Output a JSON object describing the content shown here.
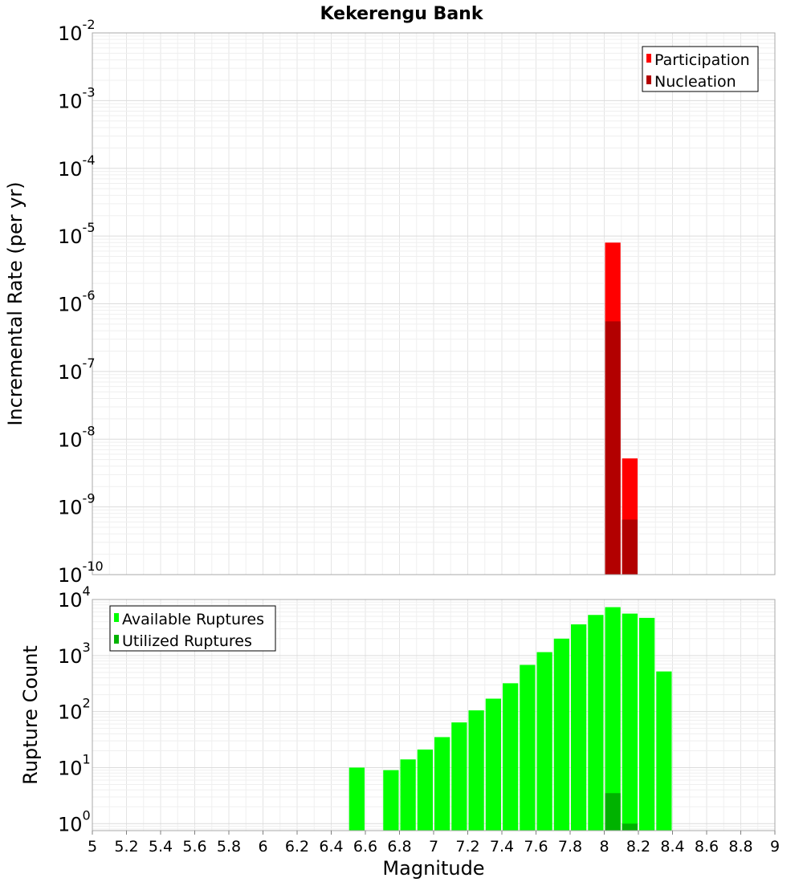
{
  "chart_data": [
    {
      "type": "bar",
      "title": "Kekerengu Bank",
      "ylabel": "Incremental Rate (per yr)",
      "xlabel": "",
      "yscale": "log",
      "xlim": [
        5,
        9
      ],
      "ylim": [
        1e-10,
        0.01
      ],
      "ytick_exponents": [
        -2,
        -3,
        -4,
        -5,
        -6,
        -7,
        -8,
        -9,
        -10
      ],
      "grid": true,
      "legend_position": "top-right",
      "bin_width": 0.1,
      "series": [
        {
          "name": "Participation",
          "color": "#ff0000",
          "x": [
            8.05,
            8.15
          ],
          "values": [
            8e-06,
            5.2e-09
          ]
        },
        {
          "name": "Nucleation",
          "color": "#b20000",
          "x": [
            8.05,
            8.15
          ],
          "values": [
            5.5e-07,
            6.5e-10
          ]
        }
      ]
    },
    {
      "type": "bar",
      "title": "",
      "xlabel": "Magnitude",
      "ylabel": "Rupture Count",
      "yscale": "log",
      "xlim": [
        5,
        9
      ],
      "ylim": [
        0.75,
        10000
      ],
      "ytick_exponents": [
        4,
        3,
        2,
        1,
        0
      ],
      "xticks": [
        "5",
        "5.2",
        "5.4",
        "5.6",
        "5.8",
        "6",
        "6.2",
        "6.4",
        "6.6",
        "6.8",
        "7",
        "7.2",
        "7.4",
        "7.6",
        "7.8",
        "8",
        "8.2",
        "8.4",
        "8.6",
        "8.8",
        "9"
      ],
      "grid": true,
      "legend_position": "top-left",
      "bin_width": 0.1,
      "series": [
        {
          "name": "Available Ruptures",
          "color": "#00ff00",
          "x": [
            6.55,
            6.75,
            6.85,
            6.95,
            7.05,
            7.15,
            7.25,
            7.35,
            7.45,
            7.55,
            7.65,
            7.75,
            7.85,
            7.95,
            8.05,
            8.15,
            8.25,
            8.35
          ],
          "values": [
            10,
            9,
            14,
            21,
            35,
            64,
            105,
            170,
            320,
            680,
            1150,
            2000,
            3600,
            5300,
            7300,
            5600,
            4700,
            520
          ]
        },
        {
          "name": "Utilized Ruptures",
          "color": "#00b200",
          "x": [
            8.05,
            8.15
          ],
          "values": [
            3.5,
            1
          ]
        }
      ]
    }
  ]
}
